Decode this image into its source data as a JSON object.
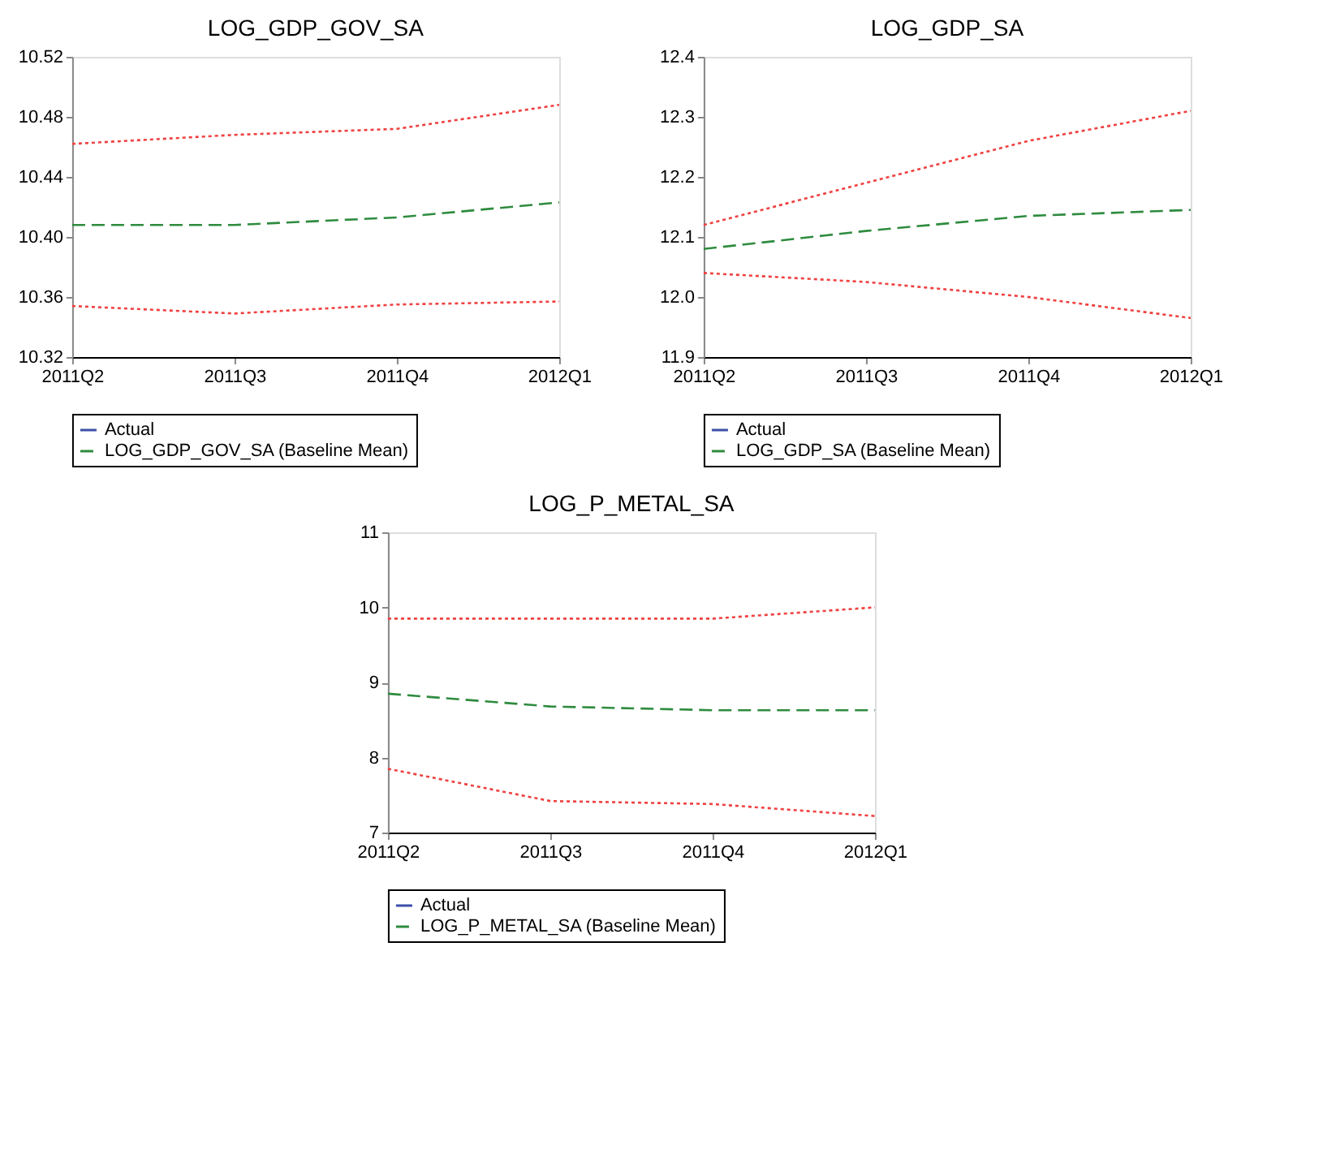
{
  "chart_data": [
    {
      "type": "line",
      "title": "LOG_GDP_GOV_SA",
      "categories": [
        "2011Q2",
        "2011Q3",
        "2011Q4",
        "2012Q1"
      ],
      "ylim": [
        10.32,
        10.52
      ],
      "yticks": [
        10.32,
        10.36,
        {
          "value": 10.4,
          "label": "10.40"
        },
        10.44,
        10.48,
        10.52
      ],
      "grid": false,
      "legend": "bottom",
      "series": [
        {
          "name": "Actual",
          "color": "#3c4fa8",
          "line_style": "solid",
          "values": [
            null,
            null,
            null,
            null
          ]
        },
        {
          "name": "LOG_GDP_GOV_SA (Baseline Mean)",
          "color": "#2e8b3e",
          "line_style": "dashed",
          "values": [
            10.408,
            10.408,
            10.413,
            10.423
          ]
        },
        {
          "color": "#f04040",
          "line_style": "dotted",
          "values": [
            10.462,
            10.468,
            10.472,
            10.488
          ]
        },
        {
          "color": "#f04040",
          "line_style": "dotted",
          "values": [
            10.354,
            10.349,
            10.355,
            10.357
          ]
        }
      ]
    },
    {
      "type": "line",
      "title": "LOG_GDP_SA",
      "categories": [
        "2011Q2",
        "2011Q3",
        "2011Q4",
        "2012Q1"
      ],
      "ylim": [
        11.9,
        12.4
      ],
      "yticks": [
        11.9,
        {
          "value": 12.0,
          "label": "12.0"
        },
        12.1,
        12.2,
        12.3,
        12.4
      ],
      "grid": false,
      "legend": "bottom",
      "series": [
        {
          "name": "Actual",
          "color": "#3c4fa8",
          "line_style": "solid",
          "values": [
            null,
            null,
            null,
            null
          ]
        },
        {
          "name": "LOG_GDP_SA (Baseline Mean)",
          "color": "#2e8b3e",
          "line_style": "dashed",
          "values": [
            12.08,
            12.11,
            12.135,
            12.145
          ]
        },
        {
          "color": "#f04040",
          "line_style": "dotted",
          "values": [
            12.12,
            12.19,
            12.26,
            12.31
          ]
        },
        {
          "color": "#f04040",
          "line_style": "dotted",
          "values": [
            12.04,
            12.025,
            12.0,
            11.965
          ]
        }
      ]
    },
    {
      "type": "line",
      "title": "LOG_P_METAL_SA",
      "categories": [
        "2011Q2",
        "2011Q3",
        "2011Q4",
        "2012Q1"
      ],
      "ylim": [
        7,
        11
      ],
      "yticks": [
        7,
        8,
        9,
        10,
        11
      ],
      "grid": false,
      "legend": "bottom",
      "series": [
        {
          "name": "Actual",
          "color": "#3c4fa8",
          "line_style": "solid",
          "values": [
            null,
            null,
            null,
            null
          ]
        },
        {
          "name": "LOG_P_METAL_SA (Baseline Mean)",
          "color": "#2e8b3e",
          "line_style": "dashed",
          "values": [
            8.85,
            8.68,
            8.63,
            8.63
          ]
        },
        {
          "color": "#f04040",
          "line_style": "dotted",
          "values": [
            9.85,
            9.85,
            9.85,
            10.0
          ]
        },
        {
          "color": "#f04040",
          "line_style": "dotted",
          "values": [
            7.85,
            7.42,
            7.38,
            7.22
          ]
        }
      ]
    }
  ]
}
